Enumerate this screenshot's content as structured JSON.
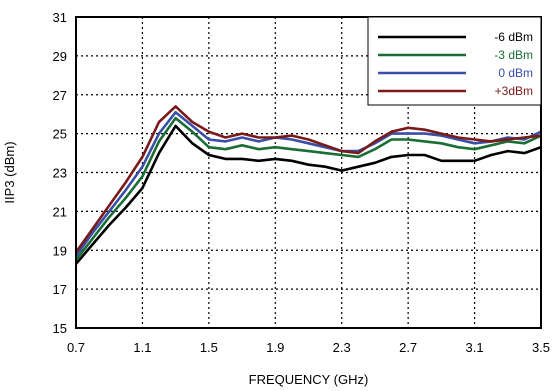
{
  "chart_data": {
    "type": "line",
    "xlabel": "FREQUENCY (GHz)",
    "ylabel": "IIP3 (dBm)",
    "xlim": [
      0.7,
      3.5
    ],
    "ylim": [
      15,
      31
    ],
    "xticks": [
      "0.7",
      "1.1",
      "1.5",
      "1.9",
      "2.3",
      "2.7",
      "3.1",
      "3.5"
    ],
    "yticks": [
      "15",
      "17",
      "19",
      "21",
      "23",
      "25",
      "27",
      "29",
      "31"
    ],
    "grid": true,
    "legend_position": "top-right",
    "x": [
      0.7,
      0.8,
      0.9,
      1.0,
      1.1,
      1.2,
      1.3,
      1.4,
      1.5,
      1.6,
      1.7,
      1.8,
      1.9,
      2.0,
      2.1,
      2.2,
      2.3,
      2.4,
      2.5,
      2.6,
      2.7,
      2.8,
      2.9,
      3.0,
      3.1,
      3.2,
      3.3,
      3.4,
      3.5
    ],
    "series": [
      {
        "name": "-6 dBm",
        "color": "#000000",
        "values": [
          18.3,
          19.3,
          20.3,
          21.2,
          22.2,
          24.0,
          25.4,
          24.5,
          23.9,
          23.7,
          23.7,
          23.6,
          23.7,
          23.6,
          23.4,
          23.3,
          23.1,
          23.3,
          23.5,
          23.8,
          23.9,
          23.9,
          23.6,
          23.6,
          23.6,
          23.9,
          24.1,
          24.0,
          24.3
        ]
      },
      {
        "name": "-3 dBm",
        "color": "#1a6e35",
        "values": [
          18.5,
          19.6,
          20.7,
          21.7,
          22.8,
          24.6,
          25.8,
          25.1,
          24.3,
          24.2,
          24.4,
          24.2,
          24.3,
          24.2,
          24.1,
          24.0,
          23.9,
          23.8,
          24.2,
          24.7,
          24.7,
          24.6,
          24.5,
          24.3,
          24.2,
          24.4,
          24.6,
          24.5,
          24.9
        ]
      },
      {
        "name": "0 dBm",
        "color": "#3a4fa8",
        "values": [
          18.7,
          19.9,
          21.0,
          22.1,
          23.3,
          25.0,
          26.1,
          25.4,
          24.7,
          24.6,
          24.8,
          24.6,
          24.8,
          24.7,
          24.5,
          24.3,
          24.1,
          24.1,
          24.5,
          25.0,
          25.0,
          25.0,
          24.9,
          24.7,
          24.5,
          24.6,
          24.8,
          24.7,
          25.1
        ]
      },
      {
        "name": "+3dBm",
        "color": "#7a1a1a",
        "values": [
          18.9,
          20.1,
          21.3,
          22.5,
          23.8,
          25.6,
          26.4,
          25.6,
          25.1,
          24.8,
          25.0,
          24.8,
          24.8,
          24.9,
          24.7,
          24.4,
          24.1,
          24.0,
          24.6,
          25.1,
          25.3,
          25.2,
          25.0,
          24.8,
          24.7,
          24.6,
          24.7,
          24.8,
          24.9
        ]
      }
    ]
  }
}
